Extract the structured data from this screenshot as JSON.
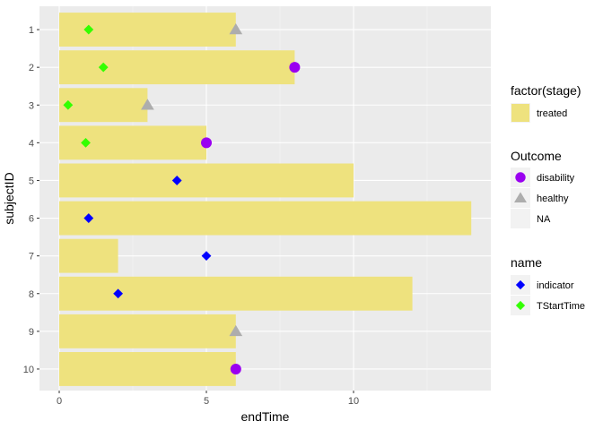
{
  "chart_data": {
    "type": "bar",
    "orientation": "horizontal",
    "xlabel": "endTime",
    "ylabel": "subjectID",
    "xlim": [
      0,
      14.6
    ],
    "x_ticks": [
      0,
      5,
      10
    ],
    "categories": [
      "1",
      "2",
      "3",
      "4",
      "5",
      "6",
      "7",
      "8",
      "9",
      "10"
    ],
    "bars": {
      "legend_title": "factor(stage)",
      "label": "treated",
      "color": "#EEE27E",
      "values": [
        6,
        8,
        3,
        5,
        10,
        14,
        2,
        12,
        6,
        6
      ]
    },
    "outcome": {
      "legend_title": "Outcome",
      "entries": [
        {
          "label": "disability",
          "color": "#9A00F0",
          "shape": "circle"
        },
        {
          "label": "healthy",
          "color": "#ADADAD",
          "shape": "triangle"
        },
        {
          "label": "NA",
          "color": "",
          "shape": "none"
        }
      ],
      "points": [
        {
          "subject": "1",
          "x": 6,
          "label": "healthy"
        },
        {
          "subject": "2",
          "x": 8,
          "label": "disability"
        },
        {
          "subject": "3",
          "x": 3,
          "label": "healthy"
        },
        {
          "subject": "4",
          "x": 5,
          "label": "disability"
        },
        {
          "subject": "9",
          "x": 6,
          "label": "healthy"
        },
        {
          "subject": "10",
          "x": 6,
          "label": "disability"
        }
      ]
    },
    "name_points": {
      "legend_title": "name",
      "entries": [
        {
          "label": "indicator",
          "color": "#0000FF",
          "shape": "diamond"
        },
        {
          "label": "TStartTime",
          "color": "#33FF00",
          "shape": "diamond"
        }
      ],
      "points": [
        {
          "subject": "1",
          "x": 1,
          "label": "TStartTime"
        },
        {
          "subject": "2",
          "x": 1.5,
          "label": "TStartTime"
        },
        {
          "subject": "3",
          "x": 0.3,
          "label": "TStartTime"
        },
        {
          "subject": "4",
          "x": 0.9,
          "label": "TStartTime"
        },
        {
          "subject": "5",
          "x": 4,
          "label": "indicator"
        },
        {
          "subject": "6",
          "x": 1,
          "label": "indicator"
        },
        {
          "subject": "7",
          "x": 5,
          "label": "indicator"
        },
        {
          "subject": "8",
          "x": 2,
          "label": "indicator"
        }
      ]
    },
    "grid": true,
    "legend_position": "right"
  }
}
